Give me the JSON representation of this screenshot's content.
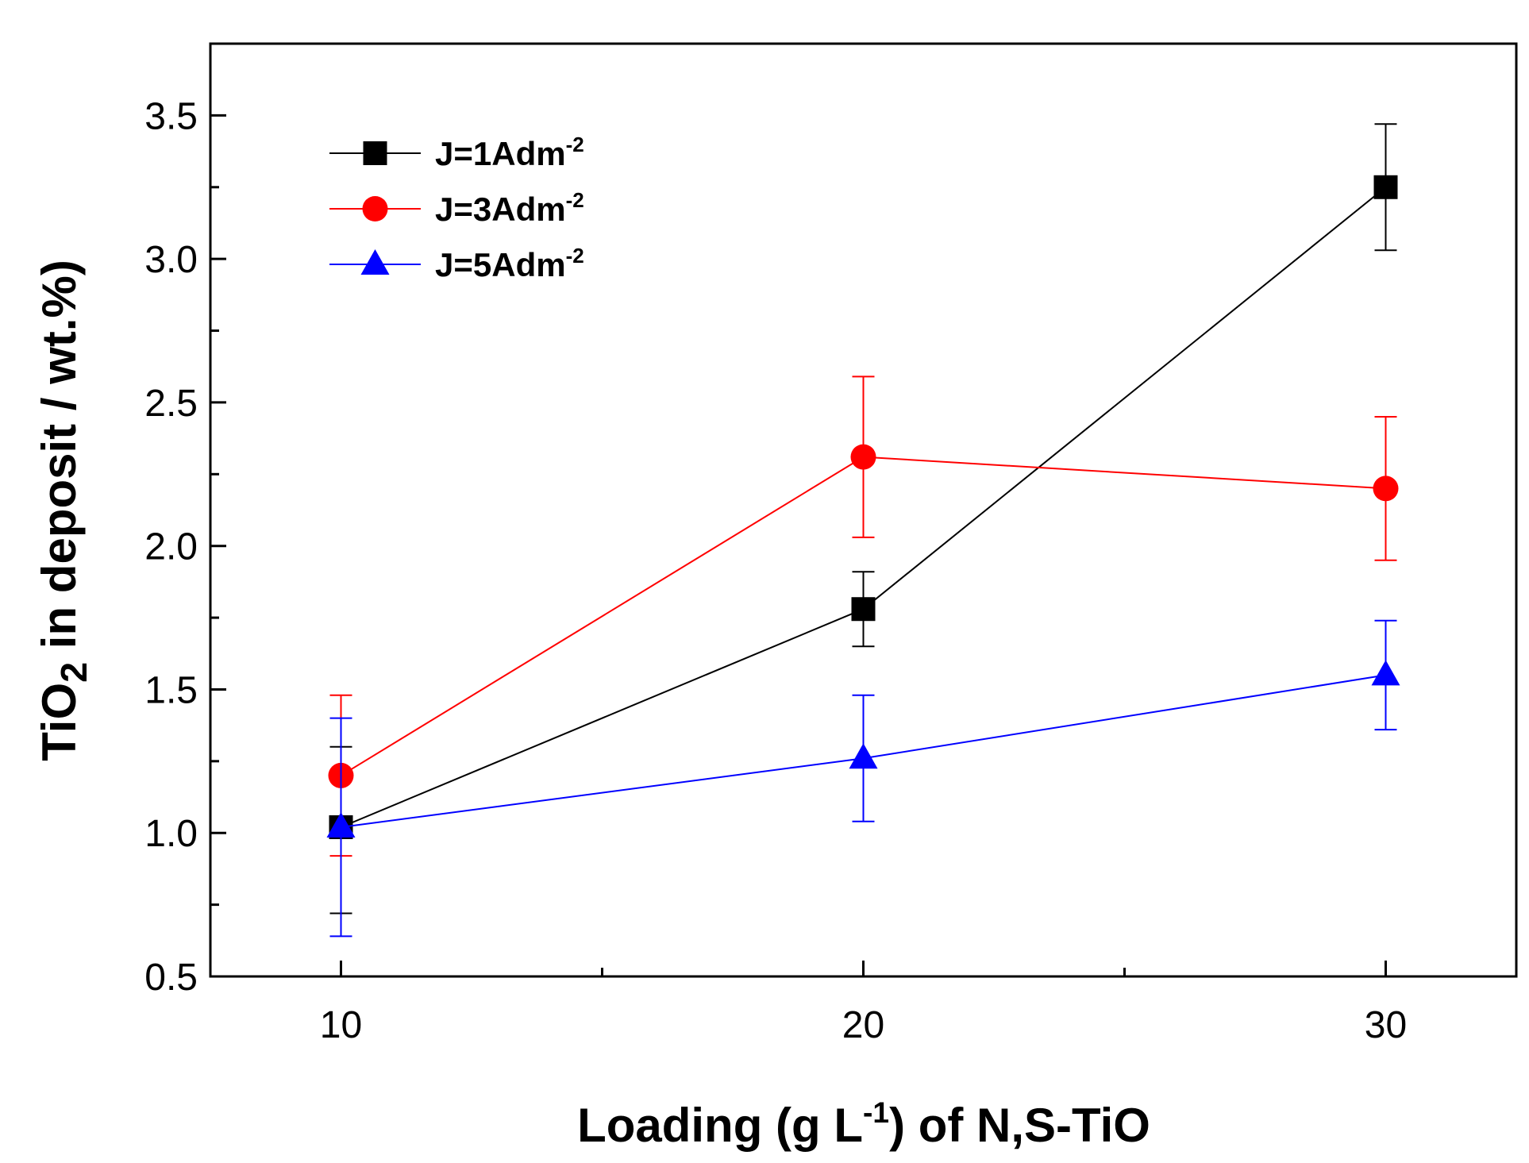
{
  "chart_data": {
    "type": "line",
    "title": "",
    "xlabel": {
      "pre": "Loading (g L",
      "sup": "-1",
      "post": ") of N,S-TiO"
    },
    "ylabel": {
      "pre": "TiO",
      "sub": "2",
      "post": " in deposit / wt.%)"
    },
    "x": [
      10,
      20,
      30
    ],
    "xlim": [
      7.5,
      32.5
    ],
    "ylim": [
      0.5,
      3.75
    ],
    "x_ticks": [
      10,
      20,
      30
    ],
    "x_tick_labels": [
      "10",
      "20",
      "30"
    ],
    "y_ticks": [
      0.5,
      1.0,
      1.5,
      2.0,
      2.5,
      3.0,
      3.5
    ],
    "y_tick_labels": [
      "0.5",
      "1.0",
      "1.5",
      "2.0",
      "2.5",
      "3.0",
      "3.5"
    ],
    "legend_position": "top-left",
    "series": [
      {
        "name": "J=1Adm",
        "name_sup": "-2",
        "color": "#000000",
        "marker": "square",
        "values": [
          1.02,
          1.78,
          3.25
        ],
        "err_low": [
          0.72,
          1.65,
          3.03
        ],
        "err_high": [
          1.3,
          1.91,
          3.47
        ]
      },
      {
        "name": "J=3Adm",
        "name_sup": "-2",
        "color": "#ff0000",
        "marker": "circle",
        "values": [
          1.2,
          2.31,
          2.2
        ],
        "err_low": [
          0.92,
          2.03,
          1.95
        ],
        "err_high": [
          1.48,
          2.59,
          2.45
        ]
      },
      {
        "name": "J=5Adm",
        "name_sup": "-2",
        "color": "#0000ff",
        "marker": "triangle",
        "values": [
          1.02,
          1.26,
          1.55
        ],
        "err_low": [
          0.64,
          1.04,
          1.36
        ],
        "err_high": [
          1.4,
          1.48,
          1.74
        ]
      }
    ]
  }
}
